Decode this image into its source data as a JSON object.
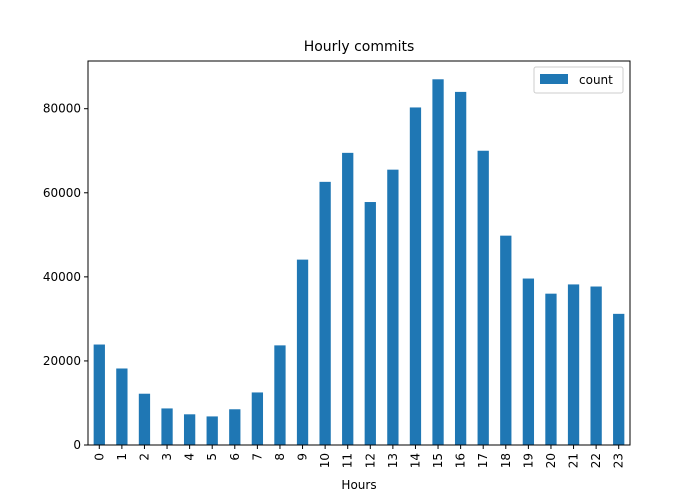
{
  "chart_data": {
    "type": "bar",
    "title": "Hourly commits",
    "xlabel": "Hours",
    "ylabel": "",
    "categories": [
      "0",
      "1",
      "2",
      "3",
      "4",
      "5",
      "6",
      "7",
      "8",
      "9",
      "10",
      "11",
      "12",
      "13",
      "14",
      "15",
      "16",
      "17",
      "18",
      "19",
      "20",
      "21",
      "22",
      "23"
    ],
    "series": [
      {
        "name": "count",
        "color": "#1f77b4",
        "values": [
          23900,
          18200,
          12200,
          8700,
          7300,
          6800,
          8500,
          12500,
          23700,
          44100,
          62600,
          69500,
          57800,
          65500,
          80300,
          87000,
          84000,
          70000,
          49800,
          39600,
          36000,
          38200,
          37700,
          31200
        ]
      }
    ],
    "ylim": [
      0,
      91350
    ],
    "yticks": [
      0,
      20000,
      40000,
      60000,
      80000
    ],
    "ytick_labels": [
      "0",
      "20000",
      "40000",
      "60000",
      "80000"
    ],
    "grid": false,
    "legend": "top-right"
  }
}
